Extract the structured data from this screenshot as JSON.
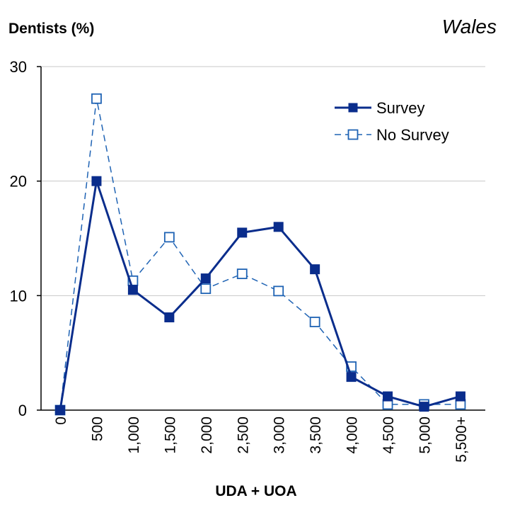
{
  "chart_data": {
    "type": "line",
    "title": "",
    "region": "Wales",
    "ylabel": "Dentists (%)",
    "xlabel": "UDA + UOA",
    "ylim": [
      0,
      30
    ],
    "yticks": [
      0,
      10,
      20,
      30
    ],
    "grid": true,
    "legend_position": "top-right",
    "categories": [
      "0",
      "500",
      "1,000",
      "1,500",
      "2,000",
      "2,500",
      "3,000",
      "3,500",
      "4,000",
      "4,500",
      "5,000",
      "5,500+"
    ],
    "series": [
      {
        "name": "Survey",
        "style": "solid",
        "marker": "filled-square",
        "color": "#0a2d8c",
        "values": [
          0,
          20,
          10.5,
          8.1,
          11.5,
          15.5,
          16,
          12.3,
          2.9,
          1.2,
          0.3,
          1.2
        ]
      },
      {
        "name": "No Survey",
        "style": "dashed",
        "marker": "open-square",
        "color": "#1f63b4",
        "values": [
          0,
          27.2,
          11.3,
          15.1,
          10.6,
          11.9,
          10.4,
          7.7,
          3.8,
          0.5,
          0.5,
          0.5
        ]
      }
    ]
  }
}
